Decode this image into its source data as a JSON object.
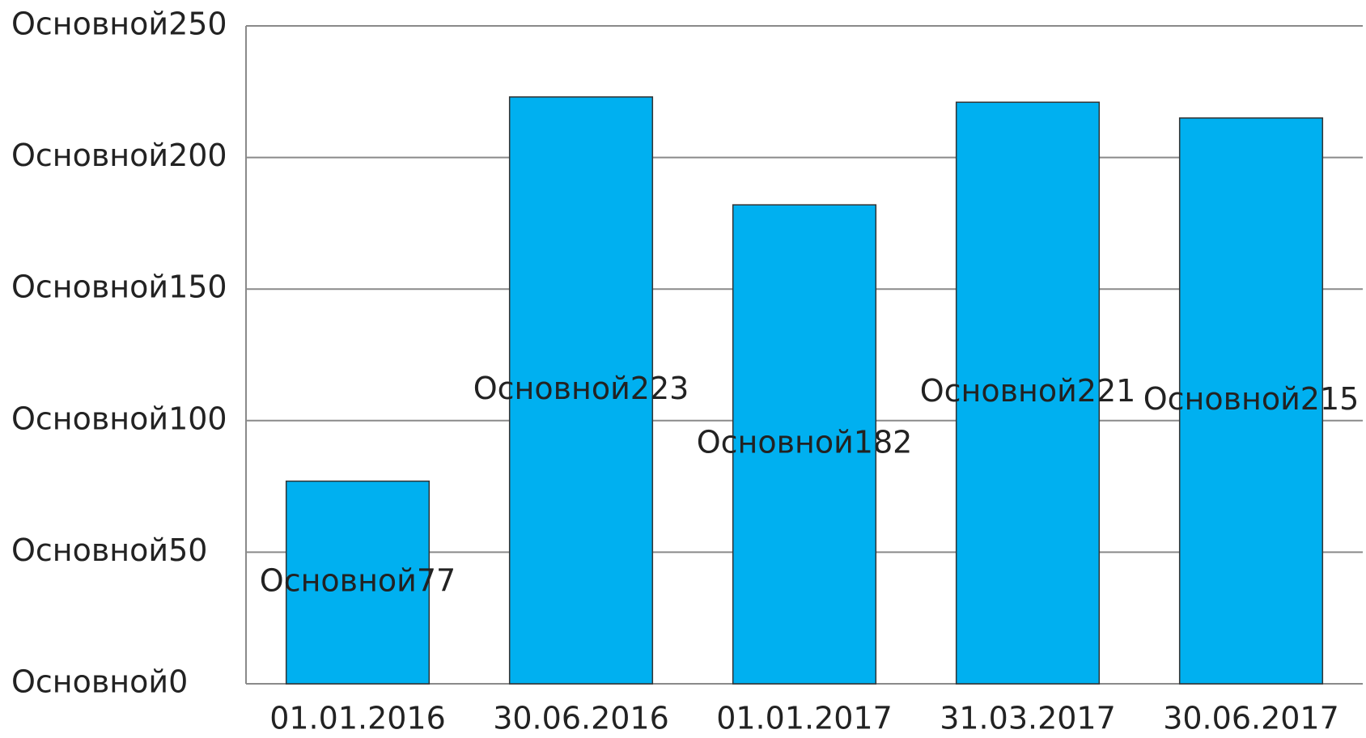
{
  "chart_data": {
    "type": "bar",
    "categories": [
      "01.01.2016",
      "30.06.2016",
      "01.01.2017",
      "31.03.2017",
      "30.06.2017"
    ],
    "values": [
      77,
      223,
      182,
      221,
      215
    ],
    "value_labels": [
      "Основной77",
      "Основной223",
      "Основной182",
      "Основной221",
      "Основной215"
    ],
    "color": "#00b0f0",
    "ylim": [
      0,
      250
    ],
    "yticks": [
      {
        "value": 0,
        "label": "Основной0"
      },
      {
        "value": 50,
        "label": "Основной50"
      },
      {
        "value": 100,
        "label": "Основной100"
      },
      {
        "value": 150,
        "label": "Основной150"
      },
      {
        "value": 200,
        "label": "Основной200"
      },
      {
        "value": 250,
        "label": "Основной250"
      }
    ],
    "grid": true
  }
}
